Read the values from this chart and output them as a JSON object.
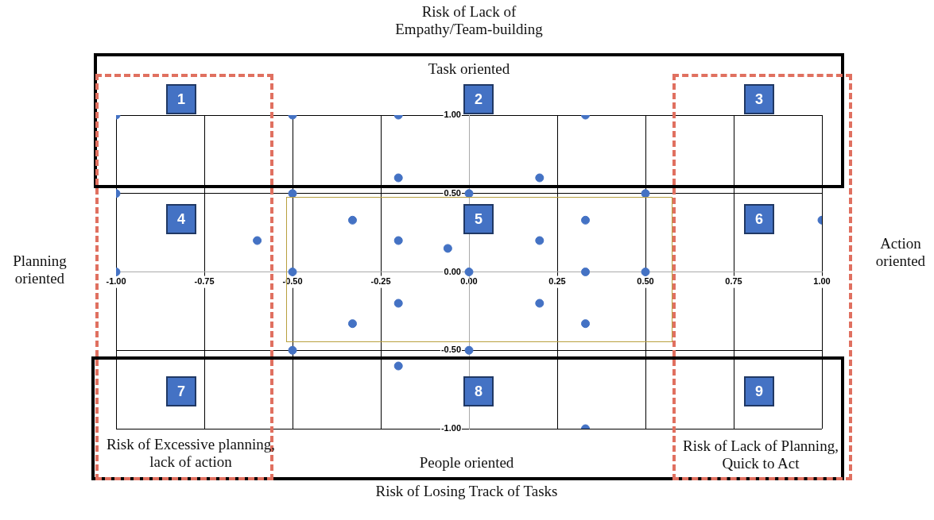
{
  "chart_data": {
    "type": "scatter",
    "x": [
      -1,
      -0.5,
      -0.2,
      0.33,
      -0.2,
      0.2,
      -1,
      -0.5,
      0,
      0.5,
      -0.33,
      0.33,
      1,
      -0.6,
      -0.2,
      0.2,
      -0.06,
      -1,
      -0.5,
      0,
      0.33,
      0.5,
      -0.2,
      0.2,
      -0.33,
      0.33,
      -0.5,
      0,
      -0.2,
      0.33
    ],
    "series": [
      {
        "color": "#4472c4",
        "values": [
          1,
          1,
          1,
          1,
          0.6,
          0.6,
          0.5,
          0.5,
          0.5,
          0.5,
          0.33,
          0.33,
          0.33,
          0.2,
          0.2,
          0.2,
          0.15,
          0,
          0,
          0,
          0,
          0,
          -0.2,
          -0.2,
          -0.33,
          -0.33,
          -0.5,
          -0.5,
          -0.6,
          -1
        ]
      }
    ],
    "xlim": [
      -1,
      1
    ],
    "xticks": [
      {
        "value": -1,
        "label": "-1.00"
      },
      {
        "value": -0.75,
        "label": "-0.75"
      },
      {
        "value": -0.5,
        "label": "-0.50"
      },
      {
        "value": -0.25,
        "label": "-0.25"
      },
      {
        "value": 0,
        "label": "0.00"
      },
      {
        "value": 0.25,
        "label": "0.25"
      },
      {
        "value": 0.5,
        "label": "0.50"
      },
      {
        "value": 0.75,
        "label": "0.75"
      },
      {
        "value": 1,
        "label": "1.00"
      }
    ],
    "ylim": [
      -1,
      1
    ],
    "yticks": [
      {
        "value": -1,
        "label": "-1.00"
      },
      {
        "value": -0.5,
        "label": "-0.50"
      },
      {
        "value": 0,
        "label": "0.00"
      },
      {
        "value": 0.5,
        "label": "0.50"
      },
      {
        "value": 1,
        "label": "1.00"
      }
    ],
    "grid": true,
    "marker": "circle",
    "annotations": [
      "Risk of Lack of Empathy/Team-building",
      "Task oriented",
      "Planning oriented",
      "Action oriented",
      "Risk of Excessive planning, lack of action",
      "People oriented",
      "Risk of Lack of Planning, Quick to Act",
      "Risk of Losing Track of Tasks",
      "1",
      "2",
      "3",
      "4",
      "5",
      "6",
      "7",
      "8",
      "9"
    ]
  }
}
